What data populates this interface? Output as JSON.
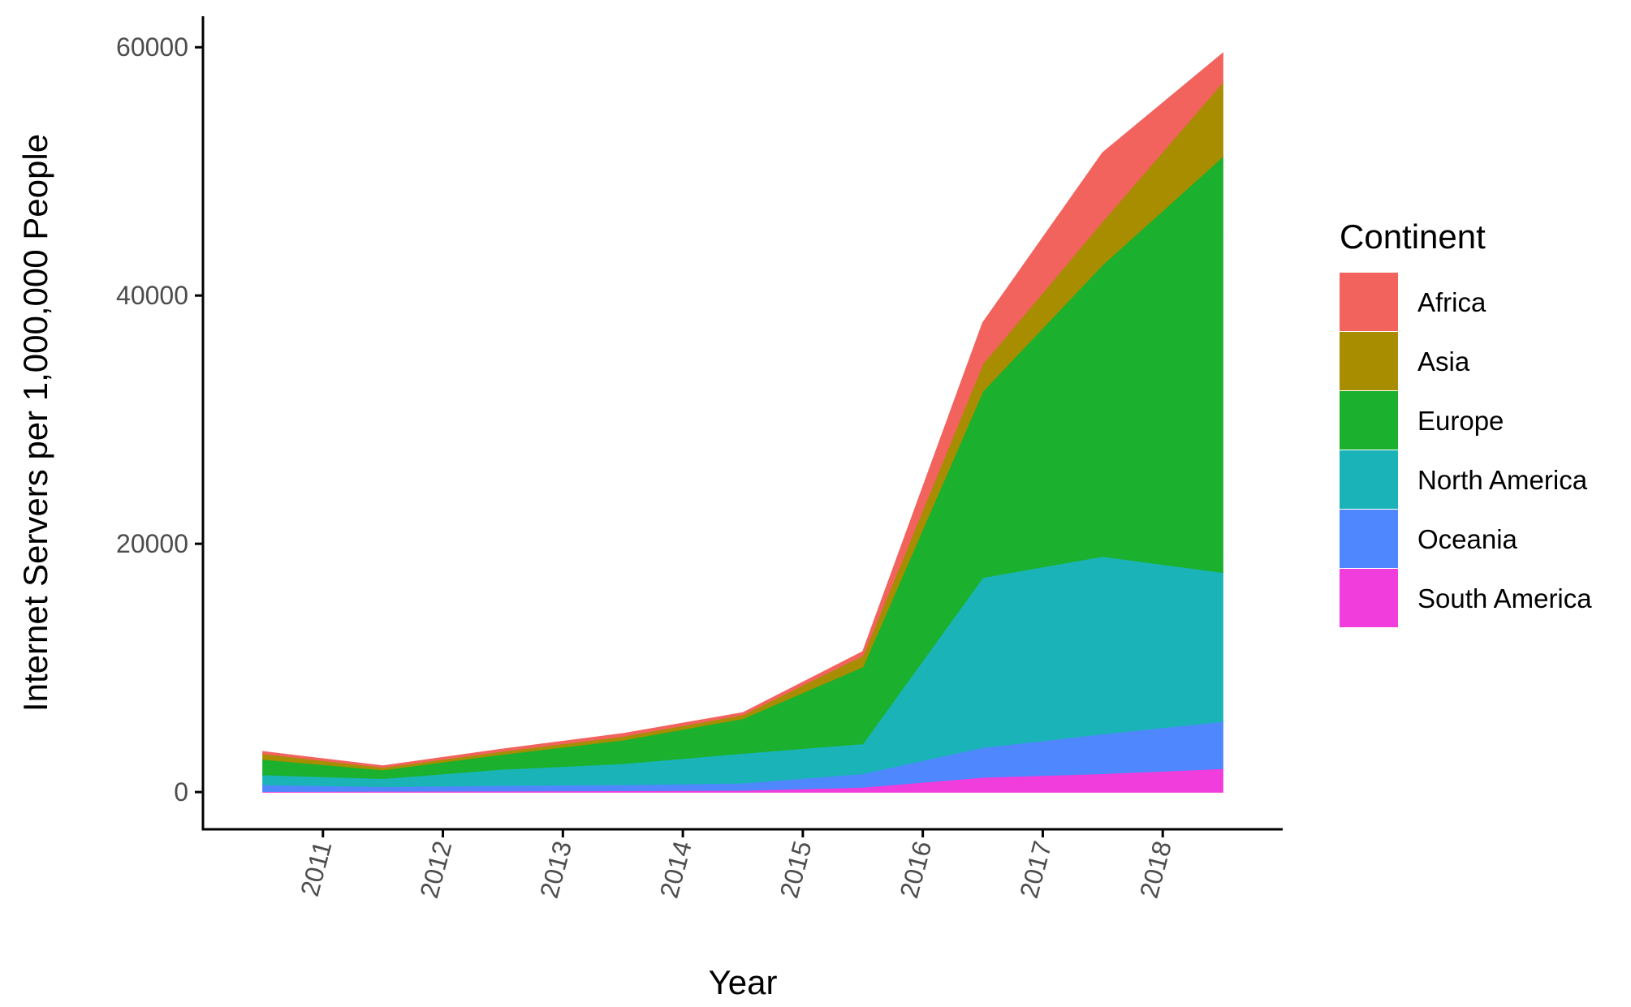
{
  "chart_data": {
    "type": "area",
    "stacked": true,
    "xlabel": "Year",
    "ylabel": "Internet Servers per 1,000,000 People",
    "xlim": [
      2010,
      2019
    ],
    "ylim": [
      -3000,
      62500
    ],
    "x_ticks": [
      2011,
      2012,
      2013,
      2014,
      2015,
      2016,
      2017,
      2018
    ],
    "y_ticks": [
      0,
      20000,
      40000,
      60000
    ],
    "x": [
      2010.5,
      2011.5,
      2012.5,
      2013.5,
      2014.5,
      2015.5,
      2016.5,
      2017.5,
      2018.5
    ],
    "series": [
      {
        "name": "South America",
        "color": "#F03DDB",
        "values": [
          50,
          80,
          100,
          120,
          150,
          400,
          1200,
          1500,
          1900
        ]
      },
      {
        "name": "Oceania",
        "color": "#4F87FF",
        "values": [
          550,
          370,
          450,
          480,
          580,
          1100,
          2400,
          3200,
          3800
        ]
      },
      {
        "name": "North America",
        "color": "#1AB4B8",
        "values": [
          800,
          650,
          1300,
          1700,
          2400,
          2400,
          13700,
          14300,
          12000
        ]
      },
      {
        "name": "Europe",
        "color": "#1BB12E",
        "values": [
          1250,
          700,
          1200,
          1900,
          2800,
          6200,
          15000,
          23500,
          33500
        ]
      },
      {
        "name": "Asia",
        "color": "#A88D00",
        "values": [
          450,
          200,
          250,
          300,
          300,
          900,
          2200,
          3500,
          6000
        ]
      },
      {
        "name": "Africa",
        "color": "#F2635E",
        "values": [
          150,
          100,
          150,
          200,
          150,
          300,
          3300,
          5500,
          2300
        ]
      }
    ],
    "legend": {
      "title": "Continent",
      "position": "right",
      "items": [
        "Africa",
        "Asia",
        "Europe",
        "North America",
        "Oceania",
        "South America"
      ]
    },
    "grid": false
  }
}
